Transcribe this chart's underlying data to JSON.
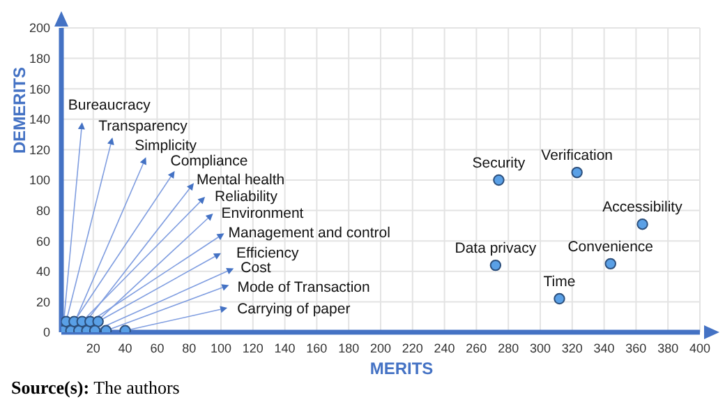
{
  "chart_data": {
    "type": "scatter",
    "xlabel": "MERITS",
    "ylabel": "DEMERITS",
    "x": [
      1,
      3,
      6,
      8,
      11,
      13,
      16,
      18,
      23,
      21,
      28,
      40,
      274,
      323,
      364,
      272,
      344,
      312
    ],
    "series": [
      {
        "color": "#5aa0e6",
        "values": [
          1,
          7,
          1,
          7,
          1,
          7,
          1,
          7,
          7,
          1,
          1,
          1,
          100,
          105,
          71,
          44,
          45,
          22
        ]
      }
    ],
    "xlim": [
      0,
      400
    ],
    "xticks": [
      {
        "value": 0,
        "label": null
      },
      20,
      40,
      60,
      80,
      100,
      120,
      140,
      160,
      180,
      200,
      220,
      240,
      260,
      280,
      300,
      320,
      340,
      360,
      380,
      400
    ],
    "ylim": [
      0,
      200
    ],
    "yticks": [
      0,
      20,
      40,
      60,
      80,
      100,
      120,
      140,
      160,
      180,
      200
    ],
    "grid": true,
    "marker": "circle",
    "legend": false,
    "annotations": [
      {
        "text": "Bureaucracy",
        "x": 1,
        "y": 1
      },
      {
        "text": "Transparency",
        "x": 3,
        "y": 7
      },
      {
        "text": "Simplicity",
        "x": 6,
        "y": 1
      },
      {
        "text": "Compliance",
        "x": 8,
        "y": 7
      },
      {
        "text": "Mental health",
        "x": 11,
        "y": 1
      },
      {
        "text": "Reliability",
        "x": 13,
        "y": 7
      },
      {
        "text": "Environment",
        "x": 16,
        "y": 1
      },
      {
        "text": "Management and control",
        "x": 18,
        "y": 7
      },
      {
        "text": "Efficiency",
        "x": 23,
        "y": 7
      },
      {
        "text": "Cost",
        "x": 21,
        "y": 1
      },
      {
        "text": "Mode of Transaction",
        "x": 28,
        "y": 1
      },
      {
        "text": "Carrying of paper",
        "x": 40,
        "y": 1
      },
      {
        "text": "Security",
        "x": 274,
        "y": 100
      },
      {
        "text": "Verification",
        "x": 323,
        "y": 105
      },
      {
        "text": "Accessibility",
        "x": 364,
        "y": 71
      },
      {
        "text": "Data privacy",
        "x": 272,
        "y": 44
      },
      {
        "text": "Convenience",
        "x": 344,
        "y": 45
      },
      {
        "text": "Time",
        "x": 312,
        "y": 22
      },
      "Source(s): The authors"
    ]
  }
}
